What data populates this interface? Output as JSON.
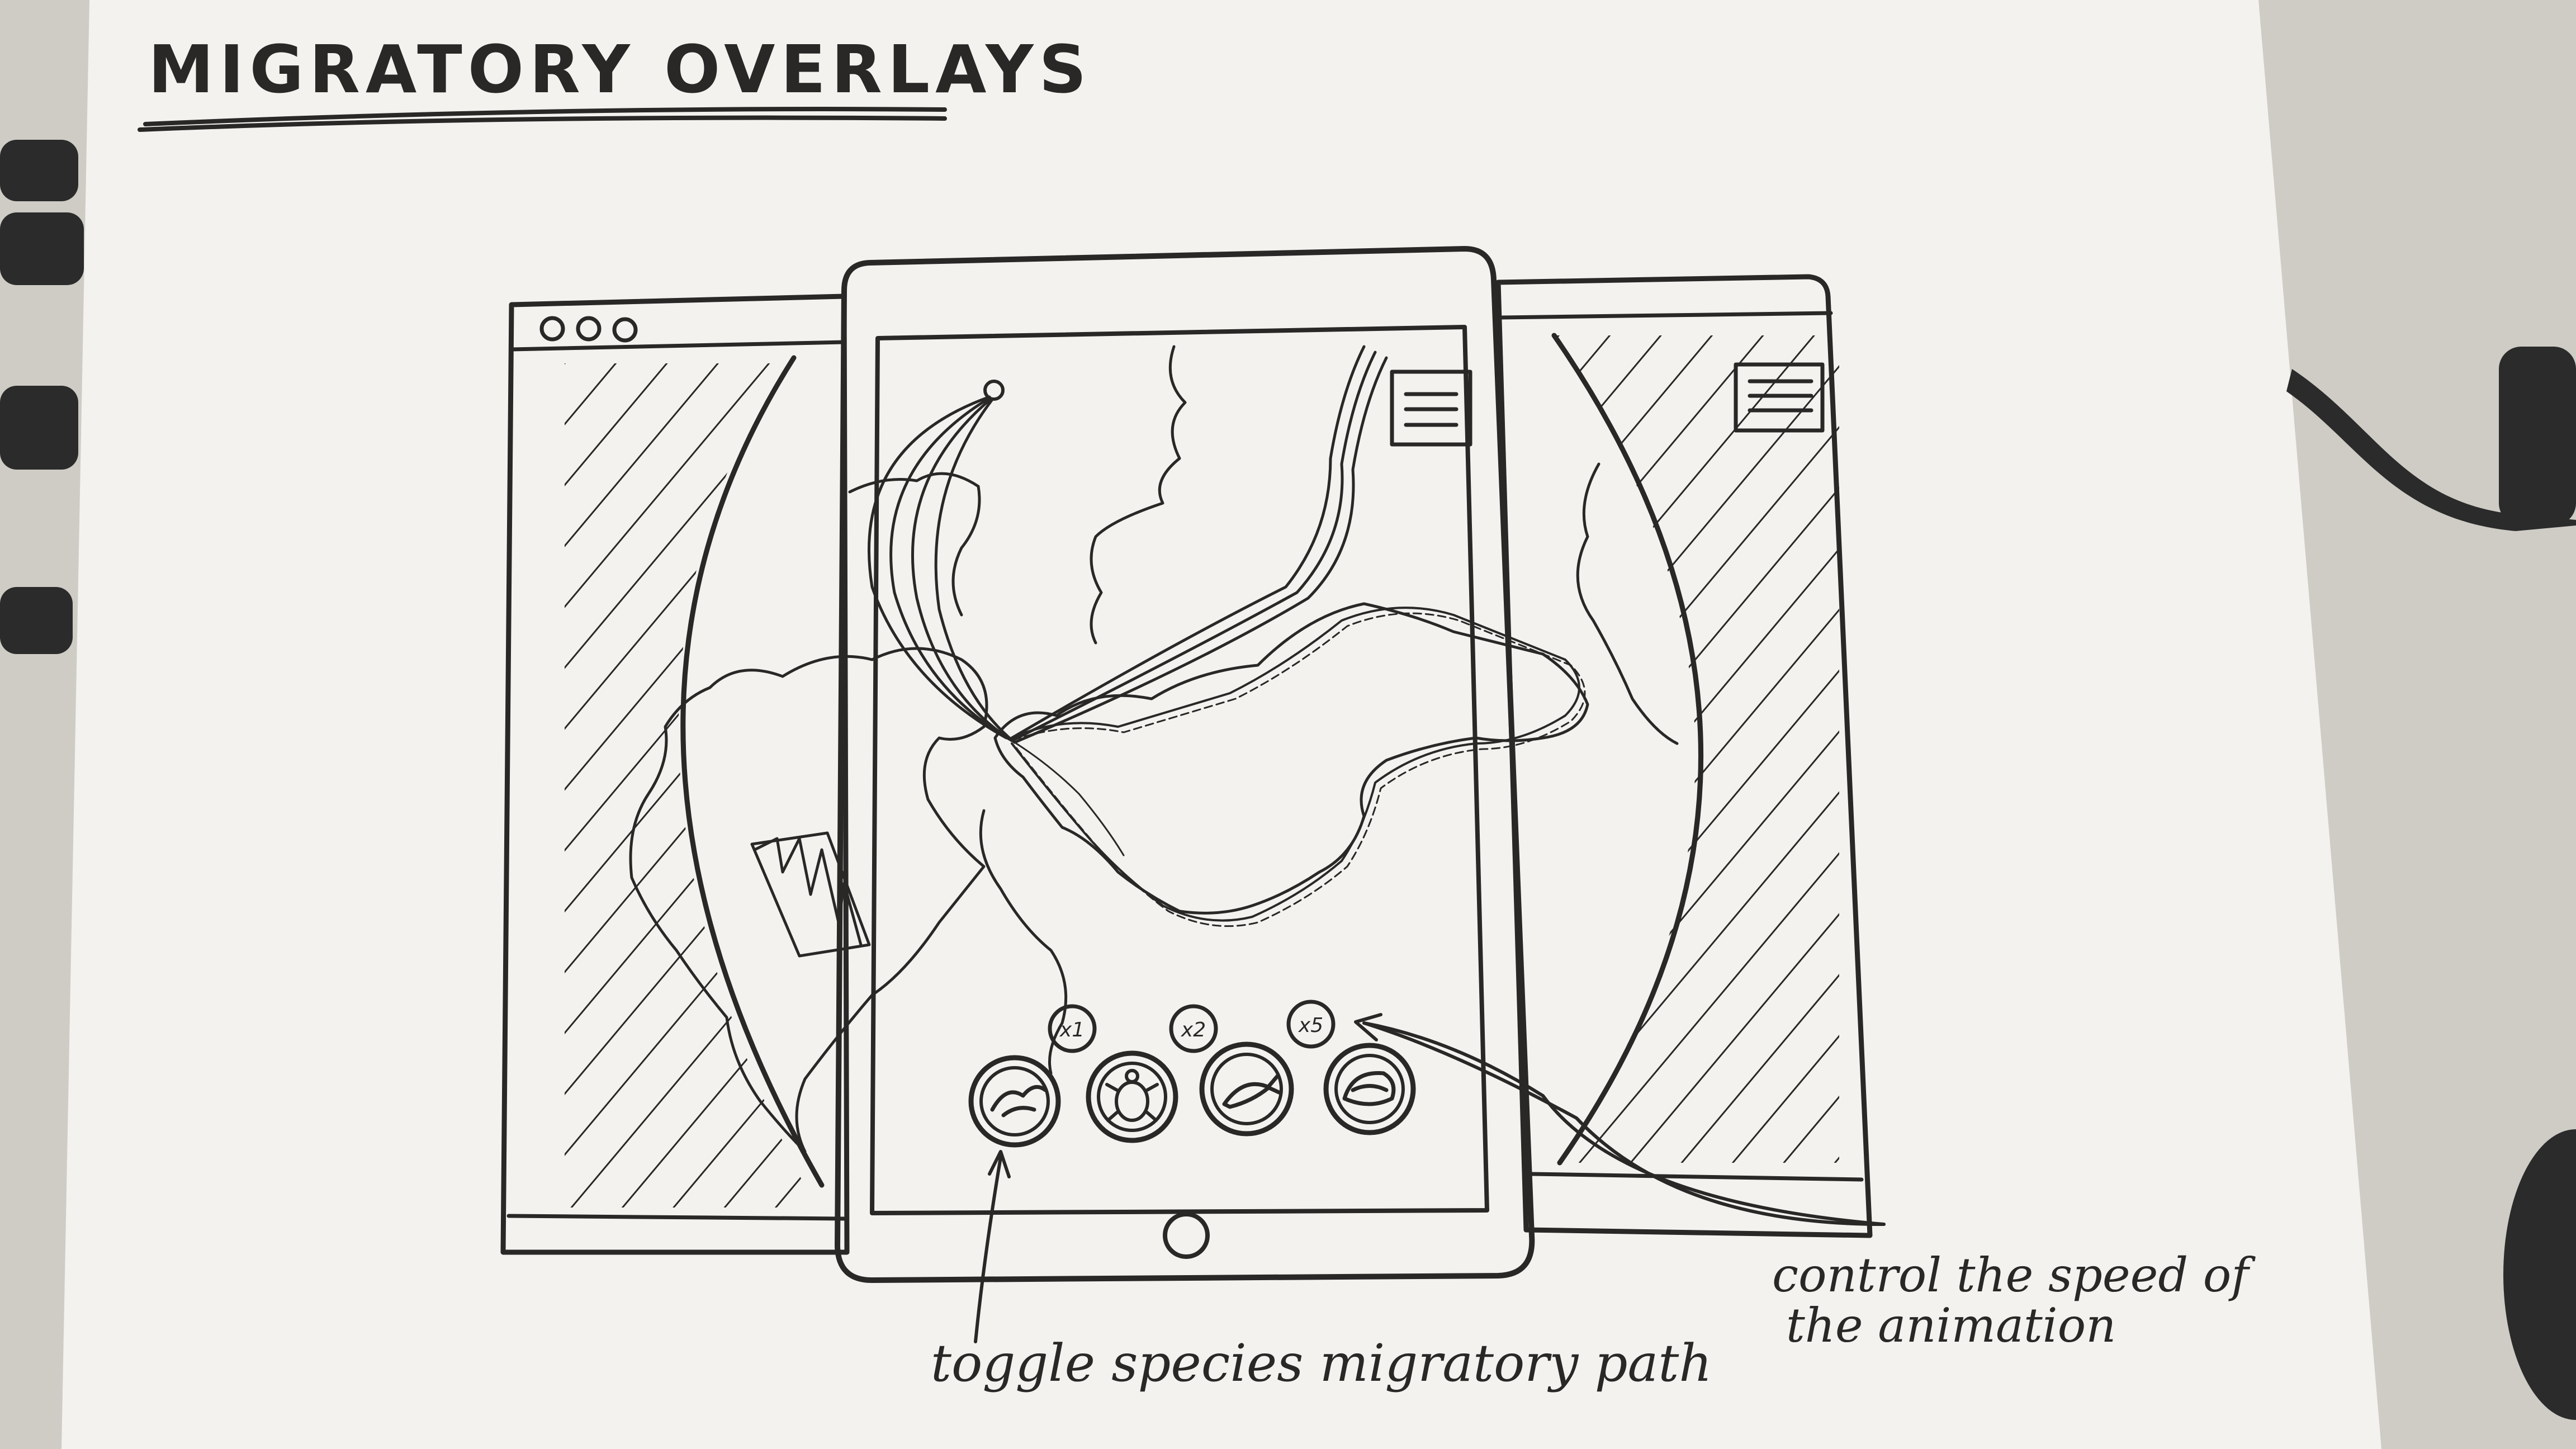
{
  "title": "MIGRATORY OVERLAYS",
  "species_buttons": [
    {
      "name": "bird",
      "icon": "bird-icon",
      "speed_label": "x1"
    },
    {
      "name": "turtle",
      "icon": "turtle-icon",
      "speed_label": "x2"
    },
    {
      "name": "fish",
      "icon": "fish-icon",
      "speed_label": "x5"
    },
    {
      "name": "whale",
      "icon": "whale-icon"
    }
  ],
  "annotations": {
    "toggle": "toggle species migratory path",
    "speed_line1": "control the speed of",
    "speed_line2": "the animation"
  },
  "colors": {
    "paper": "#f3f2ef",
    "ink": "#2a2727",
    "desk": "#cfccc6"
  }
}
